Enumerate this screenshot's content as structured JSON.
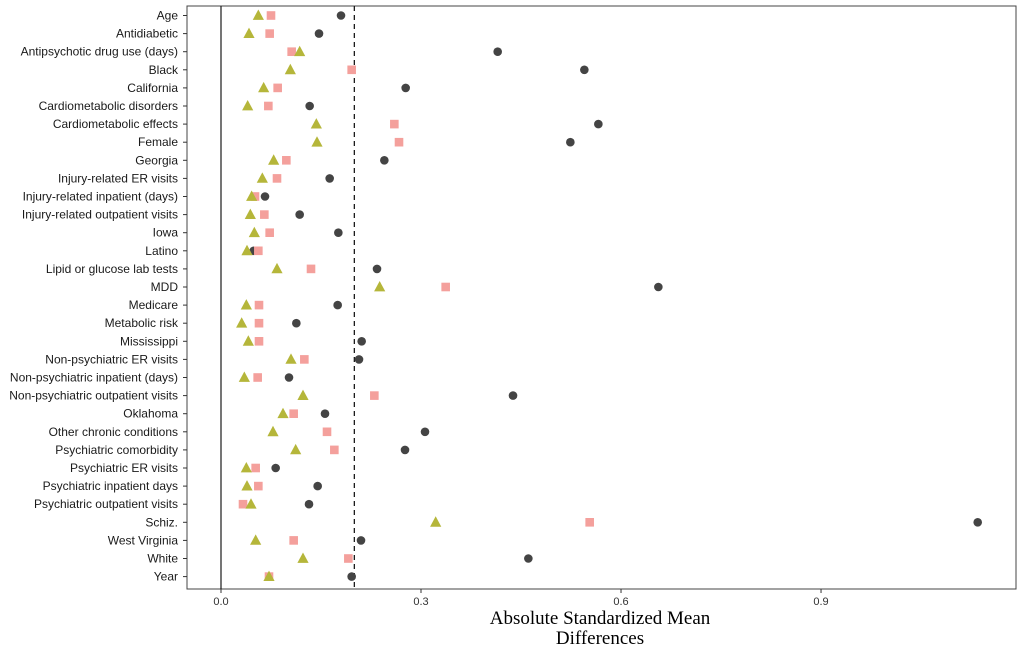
{
  "chart_data": {
    "type": "scatter",
    "title": "",
    "xlabel": [
      "Absolute Standardized Mean",
      "Differences"
    ],
    "ylabel": "",
    "xlim": [
      -0.05,
      1.19
    ],
    "x_ticks": [
      0.0,
      0.3,
      0.6,
      0.9
    ],
    "x_tick_labels": [
      "0.0",
      "0.3",
      "0.6",
      "0.9"
    ],
    "reference_lines": [
      {
        "x": 0.0,
        "style": "solid"
      },
      {
        "x": 0.2,
        "style": "dashed"
      }
    ],
    "categories": [
      "Age",
      "Antidiabetic",
      "Antipsychotic drug use (days)",
      "Black",
      "California",
      "Cardiometabolic disorders",
      "Cardiometabolic effects",
      "Female",
      "Georgia",
      "Injury-related ER visits",
      "Injury-related inpatient (days)",
      "Injury-related outpatient visits",
      "Iowa",
      "Latino",
      "Lipid or glucose lab tests",
      "MDD",
      "Medicare",
      "Metabolic risk",
      "Mississippi",
      "Non-psychiatric ER visits",
      "Non-psychiatric inpatient (days)",
      "Non-psychiatric outpatient visits",
      "Oklahoma",
      "Other chronic conditions",
      "Psychiatric comorbidity",
      "Psychiatric ER visits",
      "Psychiatric inpatient days",
      "Psychiatric outpatient visits",
      "Schiz.",
      "West Virginia",
      "White",
      "Year"
    ],
    "series": [
      {
        "name": "series-circle",
        "marker": "circle",
        "color": "#444444",
        "values": [
          0.18,
          0.147,
          0.415,
          0.545,
          0.277,
          0.133,
          0.566,
          0.524,
          0.245,
          0.163,
          0.066,
          0.118,
          0.176,
          0.049,
          0.234,
          0.656,
          0.175,
          0.113,
          0.211,
          0.207,
          0.102,
          0.438,
          0.156,
          0.306,
          0.276,
          0.082,
          0.145,
          0.132,
          1.135,
          0.21,
          0.461,
          0.196
        ]
      },
      {
        "name": "series-square",
        "marker": "square",
        "color": "#F4A09C",
        "values": [
          0.075,
          0.073,
          0.106,
          0.196,
          0.085,
          0.071,
          0.26,
          0.267,
          0.098,
          0.084,
          0.051,
          0.065,
          0.073,
          0.056,
          0.135,
          0.337,
          0.057,
          0.057,
          0.057,
          0.125,
          0.055,
          0.23,
          0.109,
          0.159,
          0.17,
          0.052,
          0.056,
          0.033,
          0.553,
          0.109,
          0.191,
          0.072
        ]
      },
      {
        "name": "series-triangle",
        "marker": "triangle",
        "color": "#B5B63A",
        "values": [
          0.056,
          0.042,
          0.118,
          0.104,
          0.064,
          0.04,
          0.143,
          0.144,
          0.079,
          0.062,
          0.046,
          0.044,
          0.05,
          0.039,
          0.084,
          0.238,
          0.038,
          0.031,
          0.041,
          0.105,
          0.035,
          0.123,
          0.093,
          0.078,
          0.112,
          0.038,
          0.039,
          0.045,
          0.322,
          0.052,
          0.123,
          0.072
        ]
      }
    ]
  }
}
